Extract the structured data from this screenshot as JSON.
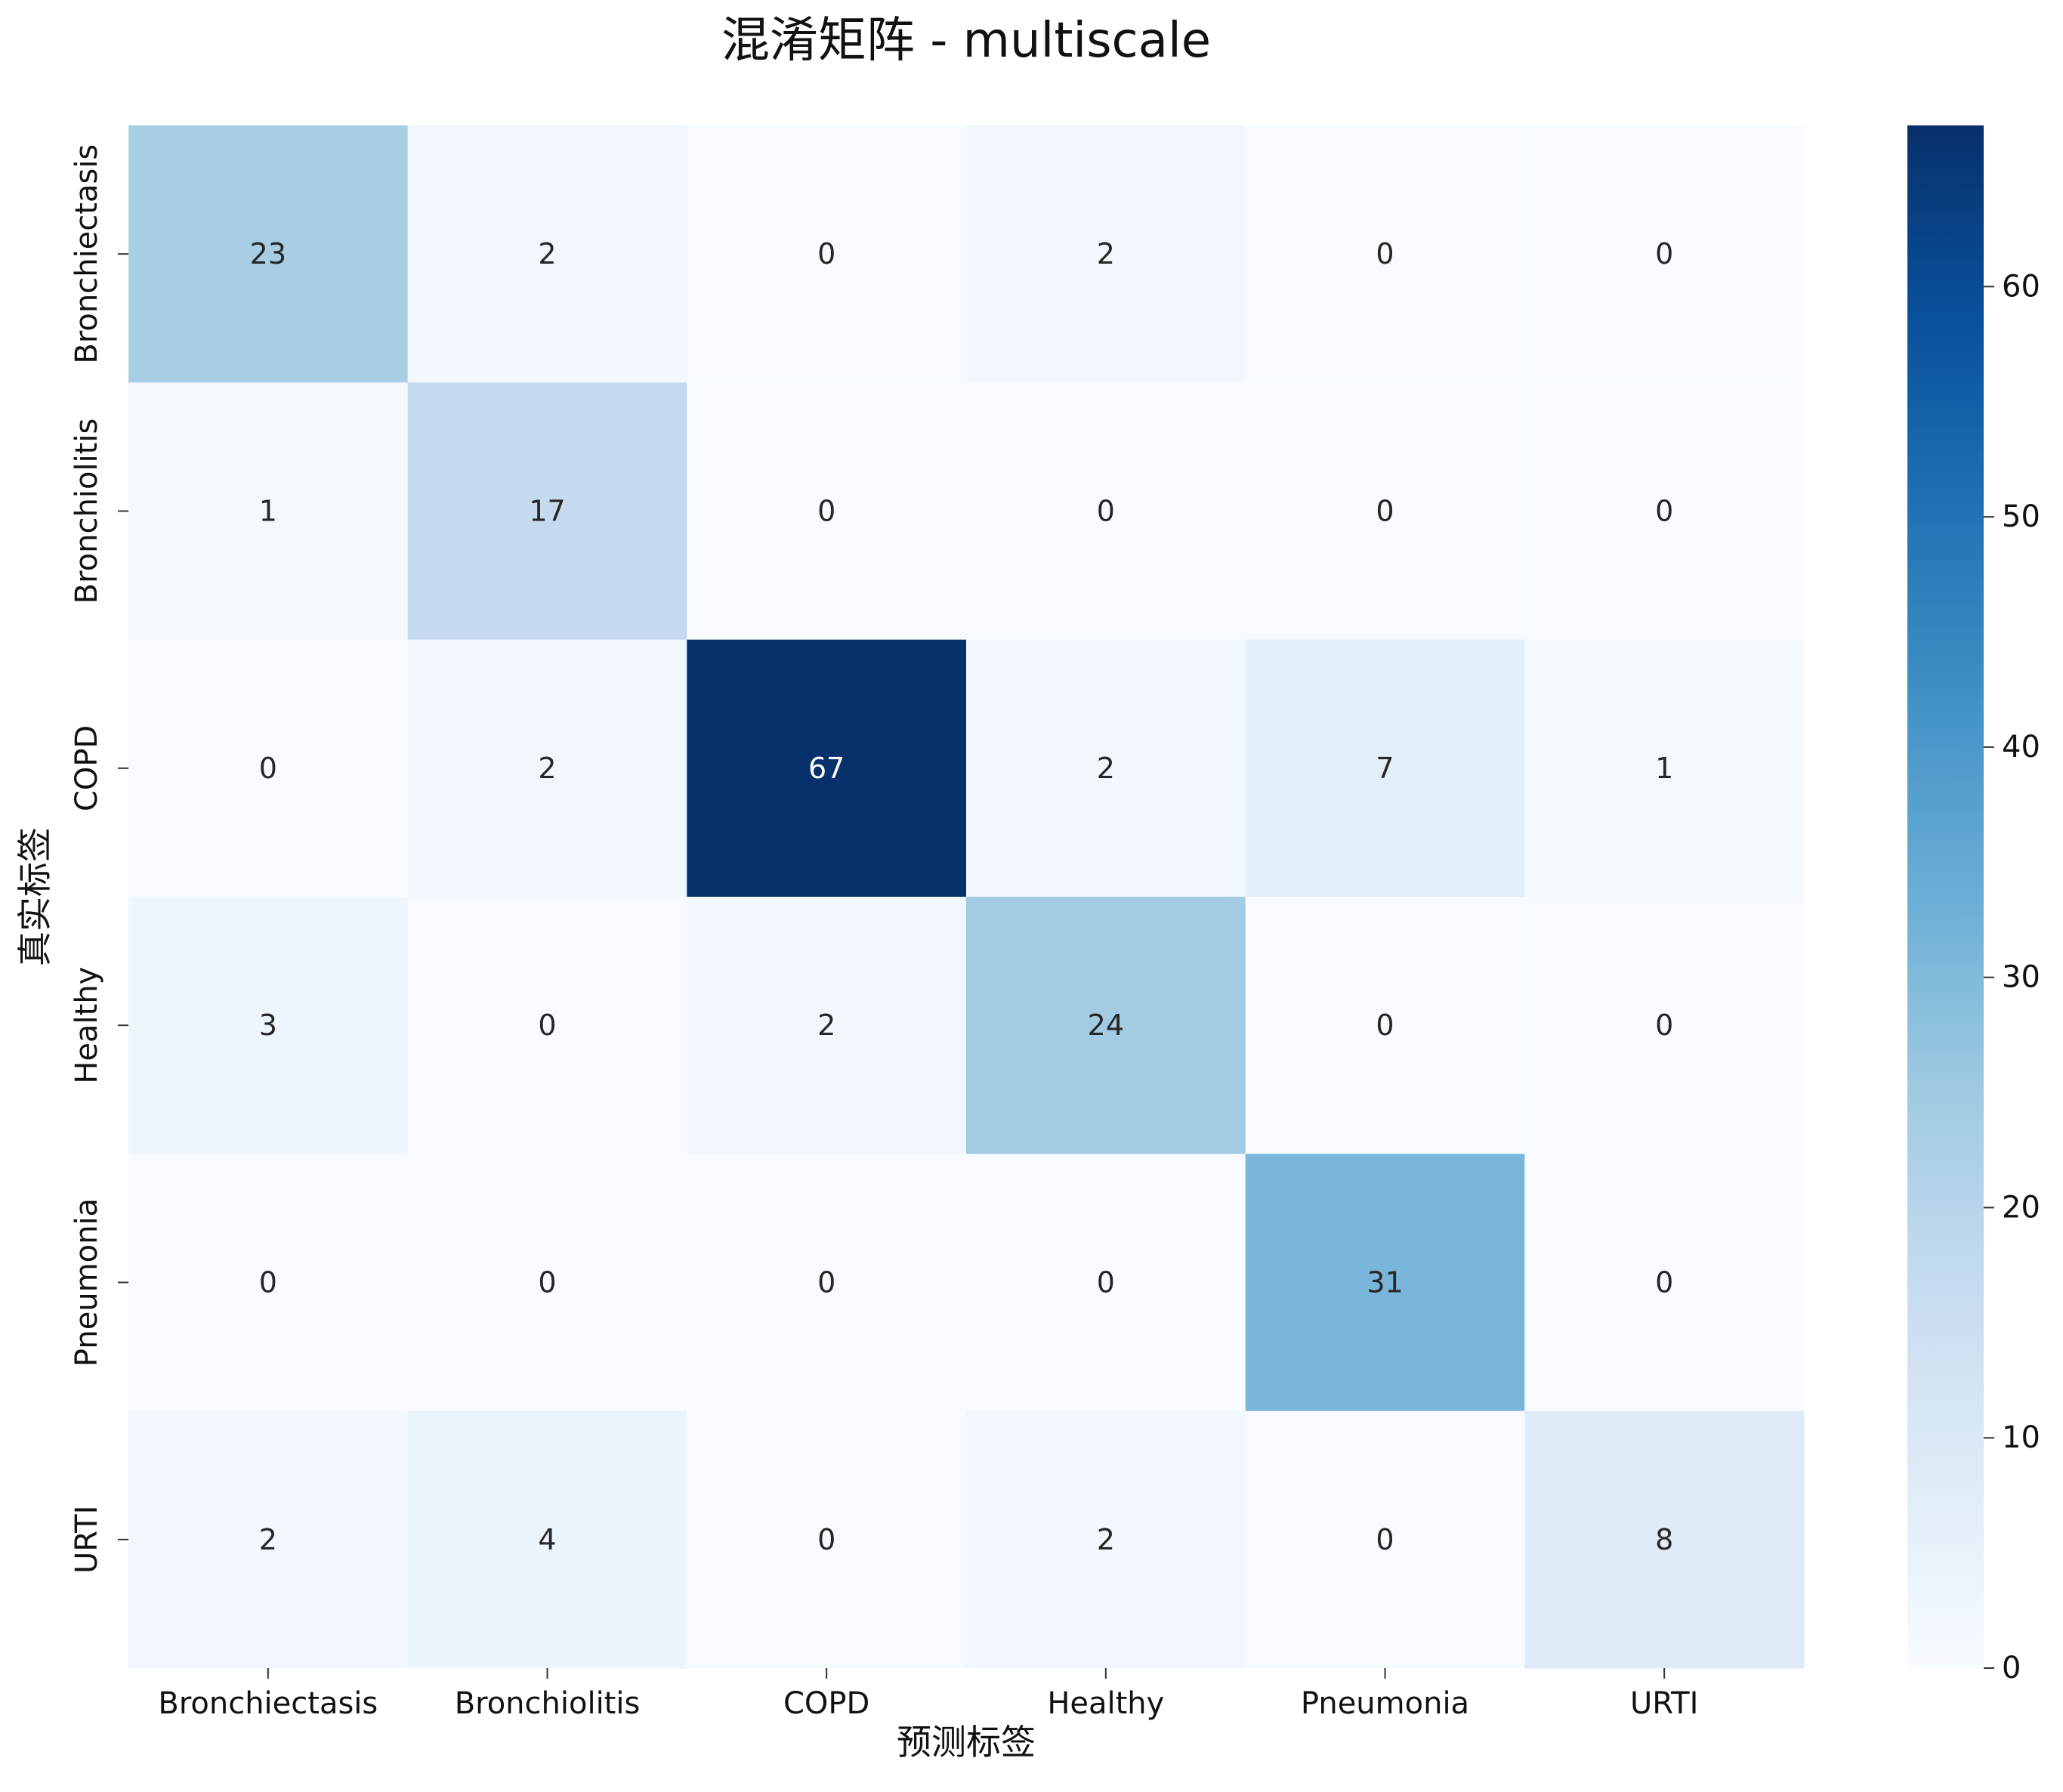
{
  "chart_data": {
    "type": "heatmap",
    "title": "混淆矩阵 - multiscale",
    "xlabel": "预测标签",
    "ylabel": "真实标签",
    "x_categories": [
      "Bronchiectasis",
      "Bronchiolitis",
      "COPD",
      "Healthy",
      "Pneumonia",
      "URTI"
    ],
    "y_categories": [
      "Bronchiectasis",
      "Bronchiolitis",
      "COPD",
      "Healthy",
      "Pneumonia",
      "URTI"
    ],
    "values": [
      [
        23,
        2,
        0,
        2,
        0,
        0
      ],
      [
        1,
        17,
        0,
        0,
        0,
        0
      ],
      [
        0,
        2,
        67,
        2,
        7,
        1
      ],
      [
        3,
        0,
        2,
        24,
        0,
        0
      ],
      [
        0,
        0,
        0,
        0,
        31,
        0
      ],
      [
        2,
        4,
        0,
        2,
        0,
        8
      ]
    ],
    "colormap": "Blues",
    "vmin": 0,
    "vmax": 67,
    "colorbar_ticks": [
      0,
      10,
      20,
      30,
      40,
      50,
      60
    ],
    "annotations": true
  }
}
